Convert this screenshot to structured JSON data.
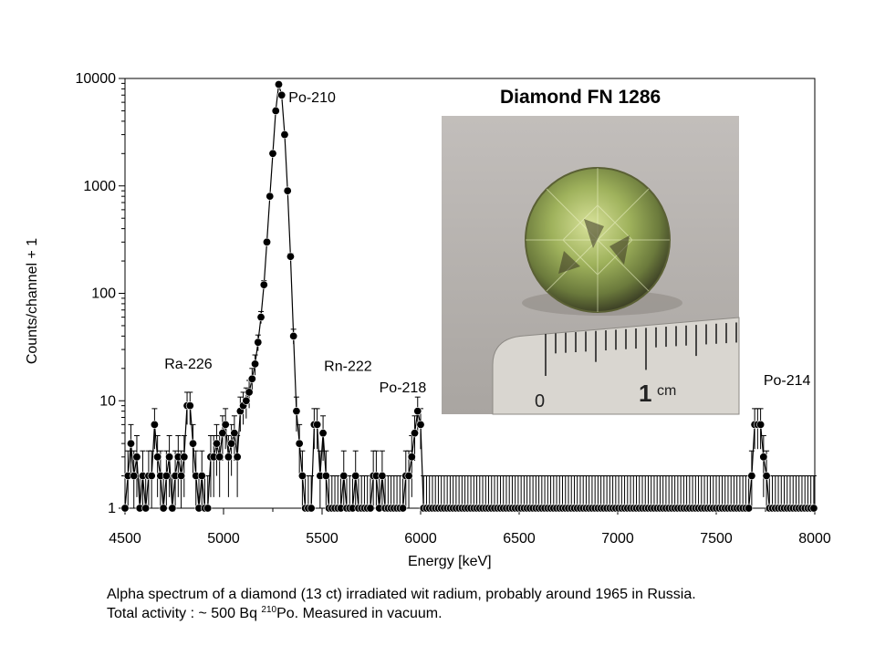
{
  "chart_data": {
    "type": "scatter",
    "inset_title": "Diamond FN 1286",
    "xlabel": "Energy [keV]",
    "ylabel": "Counts/channel + 1",
    "xlim": [
      4500,
      8000
    ],
    "ylim": [
      1,
      10000
    ],
    "yscale": "log",
    "x_ticks": [
      "4500",
      "5000",
      "5500",
      "6000",
      "6500",
      "7000",
      "7500",
      "8000"
    ],
    "y_ticks": [
      "1",
      "10",
      "100",
      "1000",
      "10000"
    ],
    "grid": false,
    "legend": "none",
    "annotations": [
      {
        "text": "Po-210",
        "x": 5330,
        "y": 6000
      },
      {
        "text": "Ra-226",
        "x": 4700,
        "y": 20
      },
      {
        "text": "Rn-222",
        "x": 5510,
        "y": 19
      },
      {
        "text": "Po-218",
        "x": 5790,
        "y": 12
      },
      {
        "text": "Po-214",
        "x": 7740,
        "y": 14
      }
    ],
    "series": [
      {
        "x": [
          4500,
          4515,
          4530,
          4545,
          4560,
          4575,
          4590,
          4605,
          4620,
          4635,
          4650,
          4665,
          4680,
          4695,
          4710,
          4725,
          4740,
          4755,
          4770,
          4785,
          4800,
          4815,
          4830,
          4845,
          4860,
          4875,
          4890,
          4905,
          4920,
          4935,
          4950,
          4965,
          4980,
          4995,
          5010,
          5025,
          5040,
          5055,
          5070,
          5085,
          5100,
          5115,
          5130,
          5145,
          5160,
          5175,
          5190,
          5205,
          5220,
          5235,
          5250,
          5265,
          5280,
          5295,
          5310,
          5325,
          5340,
          5355,
          5370,
          5385,
          5400,
          5415,
          5430,
          5445,
          5460,
          5475,
          5490,
          5505,
          5520,
          5535,
          5550,
          5565,
          5580,
          5595,
          5610,
          5625,
          5640,
          5655,
          5670,
          5685,
          5700,
          5715,
          5730,
          5745,
          5760,
          5775,
          5790,
          5805,
          5820,
          5835,
          5850,
          5865,
          5880,
          5895,
          5910,
          5925,
          5940,
          5955,
          5970,
          5985,
          6000,
          6015,
          6030,
          6045,
          6060,
          6075,
          6090,
          6105,
          6120,
          6135,
          6150,
          6165,
          6180,
          6195,
          6210,
          6225,
          6240,
          6255,
          6270,
          6285,
          6300,
          6315,
          6330,
          6345,
          6360,
          6375,
          6390,
          6405,
          6420,
          6435,
          6450,
          6465,
          6480,
          6495,
          6510,
          6525,
          6540,
          6555,
          6570,
          6585,
          6600,
          6615,
          6630,
          6645,
          6660,
          6675,
          6690,
          6705,
          6720,
          6735,
          6750,
          6765,
          6780,
          6795,
          6810,
          6825,
          6840,
          6855,
          6870,
          6885,
          6900,
          6915,
          6930,
          6945,
          6960,
          6975,
          6990,
          7005,
          7020,
          7035,
          7050,
          7065,
          7080,
          7095,
          7110,
          7125,
          7140,
          7155,
          7170,
          7185,
          7200,
          7215,
          7230,
          7245,
          7260,
          7275,
          7290,
          7305,
          7320,
          7335,
          7350,
          7365,
          7380,
          7395,
          7410,
          7425,
          7440,
          7455,
          7470,
          7485,
          7500,
          7515,
          7530,
          7545,
          7560,
          7575,
          7590,
          7605,
          7620,
          7635,
          7650,
          7665,
          7680,
          7695,
          7710,
          7725,
          7740,
          7755,
          7770,
          7785,
          7800,
          7815,
          7830,
          7845,
          7860,
          7875,
          7890,
          7905,
          7920,
          7935,
          7950,
          7965,
          7980,
          7995
        ],
        "y": [
          1,
          2,
          4,
          2,
          3,
          1,
          2,
          1,
          2,
          2,
          6,
          3,
          2,
          1,
          2,
          3,
          1,
          2,
          3,
          2,
          3,
          9,
          9,
          4,
          2,
          1,
          2,
          1,
          1,
          3,
          3,
          4,
          3,
          5,
          6,
          3,
          4,
          5,
          3,
          8,
          9,
          10,
          12,
          16,
          22,
          35,
          60,
          120,
          300,
          800,
          2000,
          5000,
          8800,
          7000,
          3000,
          900,
          220,
          40,
          8,
          4,
          2,
          1,
          1,
          1,
          6,
          6,
          2,
          5,
          2,
          1,
          1,
          1,
          1,
          1,
          2,
          1,
          1,
          1,
          2,
          1,
          1,
          1,
          1,
          1,
          2,
          2,
          1,
          2,
          1,
          1,
          1,
          1,
          1,
          1,
          1,
          2,
          2,
          3,
          5,
          8,
          6,
          1,
          1,
          1,
          1,
          1,
          1,
          1,
          1,
          1,
          1,
          1,
          1,
          1,
          1,
          1,
          1,
          1,
          1,
          1,
          1,
          1,
          1,
          1,
          1,
          1,
          1,
          1,
          1,
          1,
          1,
          1,
          1,
          1,
          1,
          1,
          1,
          1,
          1,
          1,
          1,
          1,
          1,
          1,
          1,
          1,
          1,
          1,
          1,
          1,
          1,
          1,
          1,
          1,
          1,
          1,
          1,
          1,
          1,
          1,
          1,
          1,
          1,
          1,
          1,
          1,
          1,
          1,
          1,
          1,
          1,
          1,
          1,
          1,
          1,
          1,
          1,
          1,
          1,
          1,
          1,
          1,
          1,
          1,
          1,
          1,
          1,
          1,
          1,
          1,
          1,
          1,
          1,
          1,
          1,
          1,
          1,
          1,
          1,
          1,
          1,
          1,
          1,
          1,
          1,
          1,
          1,
          1,
          1,
          1,
          1,
          1,
          2,
          6,
          6,
          6,
          3,
          2,
          1,
          1,
          1,
          1,
          1,
          1,
          1,
          1,
          1,
          1,
          1,
          1,
          1,
          1,
          1,
          1
        ]
      }
    ]
  },
  "caption": {
    "line1": "Alpha spectrum of a diamond (13 ct) irradiated wit radium, probably around 1965 in Russia.",
    "line2_pre": "Total activity : ~ 500 Bq ",
    "line2_sup": "210",
    "line2_post": "Po. Measured in vacuum."
  },
  "inset": {
    "ruler_zero": "0",
    "ruler_one": "1",
    "ruler_unit": "cm"
  },
  "colors": {
    "marker": "#000000",
    "gem_light": "#c8d78a",
    "gem_mid": "#8aa050",
    "gem_dark": "#4a4a30",
    "photo_bg": "#b7b3af",
    "ruler": "#d9d6d0"
  }
}
